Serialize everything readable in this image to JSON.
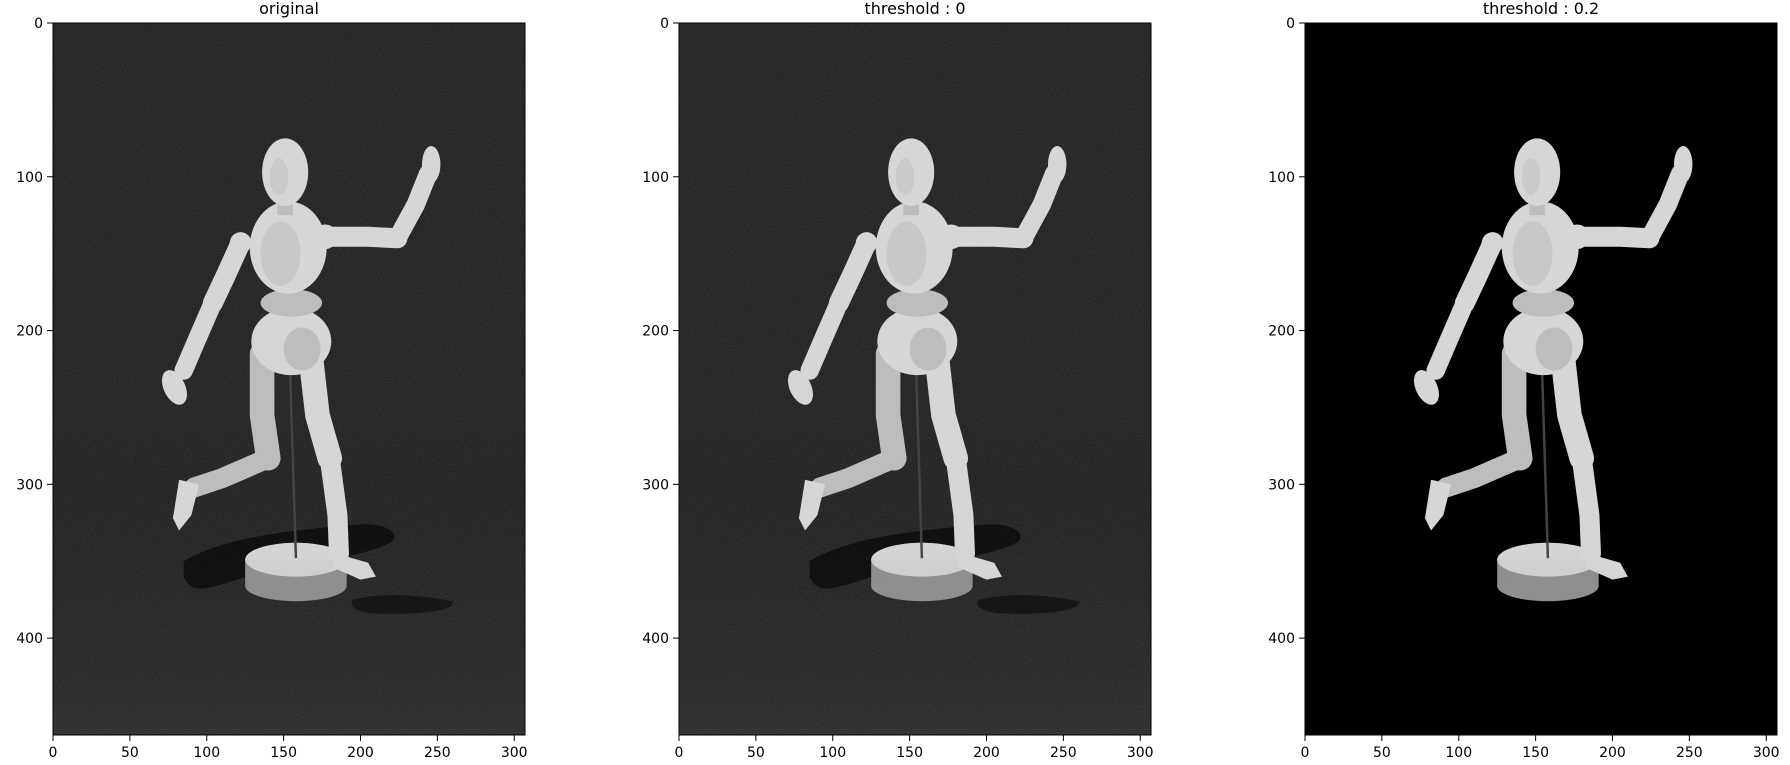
{
  "figure": {
    "panels": [
      {
        "title": "original",
        "background": "#181818",
        "noise": true,
        "shadow": true
      },
      {
        "title": "threshold : 0",
        "background": "#181818",
        "noise": true,
        "shadow": true
      },
      {
        "title": "threshold : 0.2",
        "background": "#000000",
        "noise": false,
        "shadow": false
      }
    ],
    "x_ticks": [
      "0",
      "50",
      "100",
      "150",
      "200",
      "250",
      "300"
    ],
    "y_ticks": [
      "0",
      "100",
      "200",
      "300",
      "400"
    ],
    "image_width": 307,
    "image_height": 463
  },
  "colors": {
    "figure_light": "#d6d6d6",
    "figure_mid": "#bdbdbd",
    "figure_dark": "#8f8f8f"
  }
}
